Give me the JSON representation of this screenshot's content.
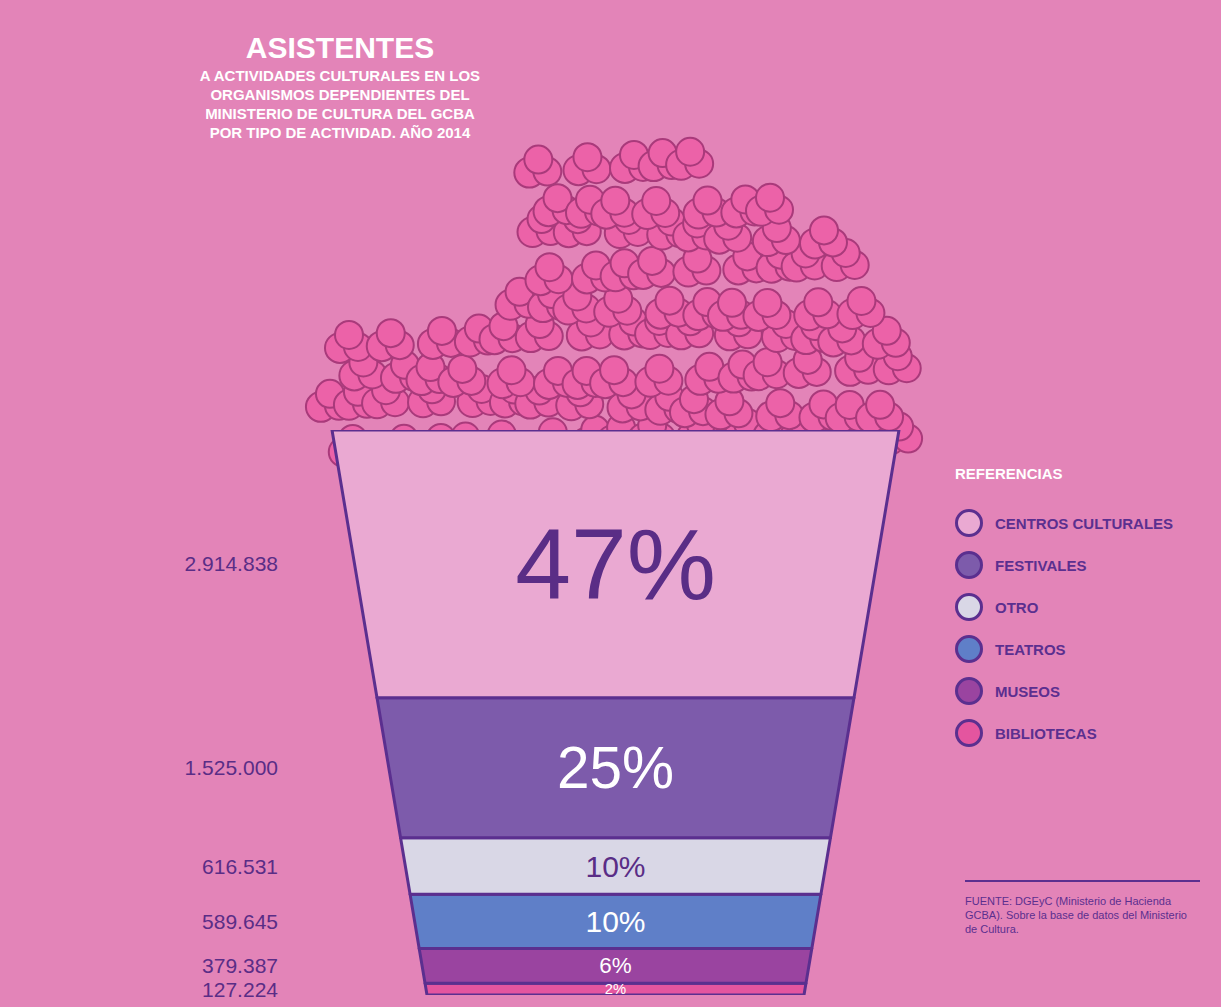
{
  "chart_data": {
    "type": "bar",
    "stacked": true,
    "title": "ASISTENTES",
    "subtitle": "A ACTIVIDADES CULTURALES EN LOS ORGANISMOS DEPENDIENTES DEL MINISTERIO DE CULTURA DEL GCBA POR TIPO DE ACTIVIDAD. AÑO 2014",
    "categories": [
      null
    ],
    "series": [
      {
        "name": "CENTROS CULTURALES",
        "color": "#eaa9d2",
        "values": [
          2914838
        ],
        "value_labels": [
          "2.914.838"
        ],
        "share": [
          47
        ],
        "share_labels": [
          "47%"
        ]
      },
      {
        "name": "FESTIVALES",
        "color": "#7d5bab",
        "values": [
          1525000
        ],
        "value_labels": [
          "1.525.000"
        ],
        "share": [
          25
        ],
        "share_labels": [
          "25%"
        ]
      },
      {
        "name": "OTRO",
        "color": "#d9d7e6",
        "values": [
          616531
        ],
        "value_labels": [
          "616.531"
        ],
        "share": [
          10
        ],
        "share_labels": [
          "10%"
        ]
      },
      {
        "name": "TEATROS",
        "color": "#5f7fc8",
        "values": [
          589645
        ],
        "value_labels": [
          "589.645"
        ],
        "share": [
          10
        ],
        "share_labels": [
          "10%"
        ]
      },
      {
        "name": "MUSEOS",
        "color": "#9a44a0",
        "values": [
          379387
        ],
        "value_labels": [
          "379.387"
        ],
        "share": [
          6
        ],
        "share_labels": [
          "6%"
        ]
      },
      {
        "name": "BIBLIOTECAS",
        "color": "#e4559f",
        "values": [
          127224
        ],
        "value_labels": [
          "127.224"
        ],
        "share": [
          2
        ],
        "share_labels": [
          "2%"
        ]
      }
    ],
    "ylim": [
      0,
      6152625
    ],
    "tick_labels": false,
    "data_labels": true,
    "legend": "right",
    "legend_title": "REFERENCIAS",
    "source": "FUENTE: DGEyC (Ministerio de Hacienda GCBA). Sobre la base de datos del Ministerio de Cultura."
  }
}
